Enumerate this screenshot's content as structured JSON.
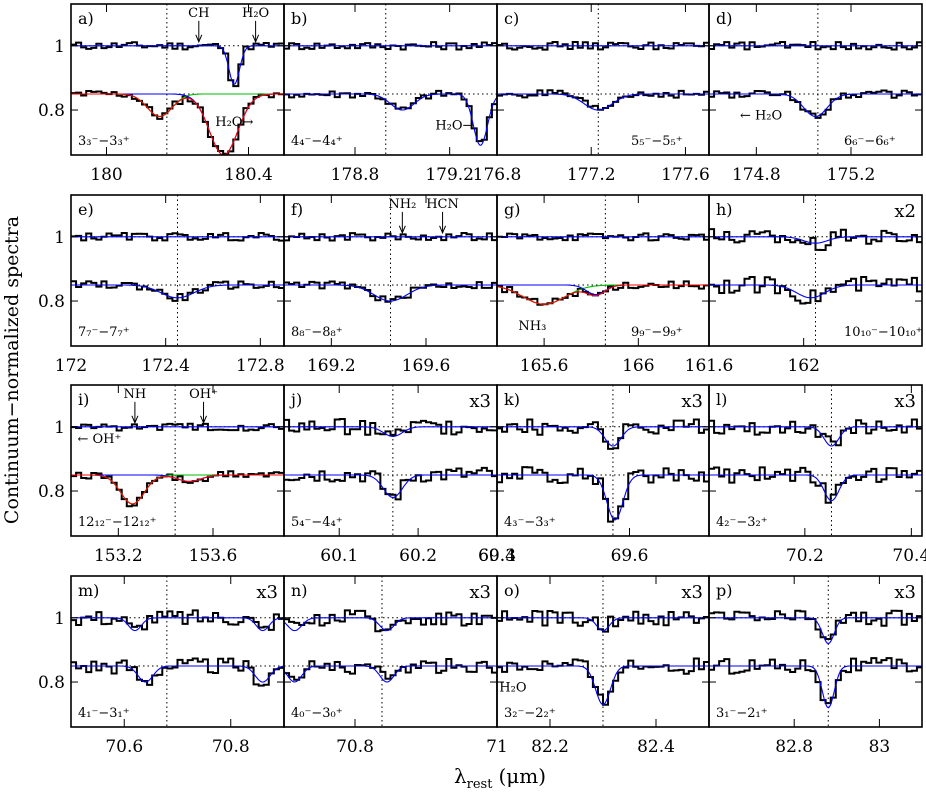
{
  "figure": {
    "ylabel": "Continuum−normalized spectra",
    "xlabel_main": "λ",
    "xlabel_sub": "rest",
    "xlabel_unit": "(μm)",
    "y_ticks": [
      {
        "v": 1,
        "label": "1"
      },
      {
        "v": 0.8,
        "label": "0.8"
      }
    ],
    "colors": {
      "spectrum": "#000000",
      "fit_total": "#0000ff",
      "fit_comp1": "#ff0000",
      "fit_comp2": "#00bb00"
    }
  },
  "chart_data": [
    {
      "type": "line",
      "id": "a",
      "panel_label": "a)",
      "transition": "3₃⁻−3₃⁺",
      "scale": "",
      "xlim": [
        179.9,
        180.5
      ],
      "x_ticks": [
        {
          "v": 180,
          "label": "180"
        },
        {
          "v": 180.4,
          "label": "180.4"
        }
      ],
      "line_center": 180.17,
      "ylim": [
        0.66,
        1.13
      ],
      "top": {
        "base": 1.0,
        "depths": [
          0.0,
          0.12
        ],
        "centers": [
          180.17,
          180.36
        ],
        "widths": [
          0.05,
          0.015
        ]
      },
      "bottom": {
        "base": 0.85,
        "depths": [
          0.07,
          0.19
        ],
        "centers": [
          180.15,
          180.33
        ],
        "widths": [
          0.035,
          0.04
        ],
        "components": true
      },
      "annotations": [
        {
          "text": "CH",
          "x": 180.26,
          "y": 1.09
        },
        {
          "text": "H₂O",
          "x": 180.42,
          "y": 1.09
        },
        {
          "text": "H₂O→",
          "x": 180.36,
          "y": 0.75
        }
      ]
    },
    {
      "type": "line",
      "id": "b",
      "panel_label": "b)",
      "transition": "4₄⁻−4₄⁺",
      "scale": "",
      "xlim": [
        178.5,
        179.4
      ],
      "x_ticks": [
        {
          "v": 178.8,
          "label": "178.8"
        },
        {
          "v": 179.2,
          "label": "179.2"
        }
      ],
      "line_center": 178.93,
      "ylim": [
        0.66,
        1.13
      ],
      "top": {
        "base": 1.0,
        "depths": [
          0.0
        ],
        "centers": [
          178.93
        ],
        "widths": [
          0.05
        ]
      },
      "bottom": {
        "base": 0.85,
        "depths": [
          0.05,
          0.16
        ],
        "centers": [
          179.0,
          179.33
        ],
        "widths": [
          0.05,
          0.03
        ]
      },
      "annotations": [
        {
          "text": "H₂O→",
          "x": 179.22,
          "y": 0.74
        }
      ]
    },
    {
      "type": "line",
      "id": "c",
      "panel_label": "c)",
      "transition": "5₅⁻−5₅⁺",
      "scale": "",
      "xlim": [
        176.8,
        177.7
      ],
      "x_ticks": [
        {
          "v": 176.8,
          "label": "176.8"
        },
        {
          "v": 177.2,
          "label": "177.2"
        },
        {
          "v": 177.6,
          "label": "177.6"
        }
      ],
      "line_center": 177.23,
      "ylim": [
        0.66,
        1.13
      ],
      "top": {
        "base": 1.0,
        "depths": [
          0.0
        ],
        "centers": [
          177.23
        ],
        "widths": [
          0.05
        ]
      },
      "bottom": {
        "base": 0.85,
        "depths": [
          0.05
        ],
        "centers": [
          177.23
        ],
        "widths": [
          0.06
        ]
      },
      "annotations": []
    },
    {
      "type": "line",
      "id": "d",
      "panel_label": "d)",
      "transition": "6₆⁻−6₆⁺",
      "scale": "",
      "xlim": [
        174.6,
        175.5
      ],
      "x_ticks": [
        {
          "v": 174.8,
          "label": "174.8"
        },
        {
          "v": 175.2,
          "label": "175.2"
        }
      ],
      "line_center": 175.06,
      "ylim": [
        0.66,
        1.13
      ],
      "top": {
        "base": 1.0,
        "depths": [
          0.0
        ],
        "centers": [
          175.06
        ],
        "widths": [
          0.05
        ]
      },
      "bottom": {
        "base": 0.85,
        "depths": [
          0.07
        ],
        "centers": [
          175.05
        ],
        "widths": [
          0.05
        ]
      },
      "annotations": [
        {
          "text": "← H₂O",
          "x": 174.82,
          "y": 0.77
        }
      ]
    },
    {
      "type": "line",
      "id": "e",
      "panel_label": "e)",
      "transition": "7₇⁻−7₇⁺",
      "scale": "",
      "xlim": [
        172.0,
        172.9
      ],
      "x_ticks": [
        {
          "v": 172,
          "label": "172"
        },
        {
          "v": 172.4,
          "label": "172.4"
        },
        {
          "v": 172.8,
          "label": "172.8"
        }
      ],
      "line_center": 172.45,
      "ylim": [
        0.66,
        1.13
      ],
      "top": {
        "base": 1.0,
        "depths": [
          0.0
        ],
        "centers": [
          172.45
        ],
        "widths": [
          0.05
        ]
      },
      "bottom": {
        "base": 0.85,
        "depths": [
          0.04
        ],
        "centers": [
          172.45
        ],
        "widths": [
          0.07
        ]
      },
      "annotations": []
    },
    {
      "type": "line",
      "id": "f",
      "panel_label": "f)",
      "transition": "8₈⁻−8₈⁺",
      "scale": "",
      "xlim": [
        169.0,
        169.9
      ],
      "x_ticks": [
        {
          "v": 169.2,
          "label": "169.2"
        },
        {
          "v": 169.6,
          "label": "169.6"
        }
      ],
      "line_center": 169.45,
      "ylim": [
        0.66,
        1.13
      ],
      "top": {
        "base": 1.0,
        "depths": [
          0.0
        ],
        "centers": [
          169.45
        ],
        "widths": [
          0.05
        ]
      },
      "bottom": {
        "base": 0.85,
        "depths": [
          0.05
        ],
        "centers": [
          169.45
        ],
        "widths": [
          0.07
        ]
      },
      "annotations": [
        {
          "text": "NH₂",
          "x": 169.5,
          "y": 1.09
        },
        {
          "text": "HCN",
          "x": 169.67,
          "y": 1.09
        }
      ]
    },
    {
      "type": "line",
      "id": "g",
      "panel_label": "g)",
      "transition": "9₉⁻−9₉⁺",
      "scale": "",
      "xlim": [
        165.4,
        166.3
      ],
      "x_ticks": [
        {
          "v": 165.6,
          "label": "165.6"
        },
        {
          "v": 166,
          "label": "166"
        }
      ],
      "line_center": 165.86,
      "ylim": [
        0.66,
        1.13
      ],
      "top": {
        "base": 1.0,
        "depths": [
          0.0
        ],
        "centers": [
          165.86
        ],
        "widths": [
          0.05
        ]
      },
      "bottom": {
        "base": 0.85,
        "depths": [
          0.06,
          0.03
        ],
        "centers": [
          165.6,
          165.82
        ],
        "widths": [
          0.09,
          0.04
        ],
        "components": true
      },
      "annotations": [
        {
          "text": "NH₃",
          "x": 165.55,
          "y": 0.71
        }
      ]
    },
    {
      "type": "line",
      "id": "h",
      "panel_label": "h)",
      "transition": "10₁₀⁻−10₁₀⁺",
      "scale": "x2",
      "xlim": [
        161.6,
        162.5
      ],
      "x_ticks": [
        {
          "v": 161.6,
          "label": "161.6"
        },
        {
          "v": 162,
          "label": "162"
        }
      ],
      "line_center": 162.05,
      "ylim": [
        0.66,
        1.13
      ],
      "top": {
        "base": 1.0,
        "depths": [
          0.02
        ],
        "centers": [
          162.05
        ],
        "widths": [
          0.05
        ]
      },
      "bottom": {
        "base": 0.85,
        "depths": [
          0.04
        ],
        "centers": [
          162.03
        ],
        "widths": [
          0.06
        ]
      },
      "annotations": []
    },
    {
      "type": "line",
      "id": "i",
      "panel_label": "i)",
      "transition": "12₁₂⁻−12₁₂⁺",
      "scale": "",
      "xlim": [
        153.0,
        153.9
      ],
      "x_ticks": [
        {
          "v": 153.2,
          "label": "153.2"
        },
        {
          "v": 153.6,
          "label": "153.6"
        }
      ],
      "line_center": 153.44,
      "ylim": [
        0.66,
        1.13
      ],
      "top": {
        "base": 1.0,
        "depths": [
          0.0
        ],
        "centers": [
          153.44
        ],
        "widths": [
          0.05
        ]
      },
      "bottom": {
        "base": 0.85,
        "depths": [
          0.09,
          0.02
        ],
        "centers": [
          153.26,
          153.5
        ],
        "widths": [
          0.05,
          0.05
        ],
        "components": true
      },
      "annotations": [
        {
          "text": "NH",
          "x": 153.27,
          "y": 1.09
        },
        {
          "text": "OH⁺",
          "x": 153.56,
          "y": 1.09
        },
        {
          "text": "← OH⁺",
          "x": 153.12,
          "y": 0.95
        }
      ]
    },
    {
      "type": "line",
      "id": "j",
      "panel_label": "j)",
      "transition": "5₄⁻−4₄⁺",
      "scale": "x3",
      "xlim": [
        60.03,
        60.3
      ],
      "x_ticks": [
        {
          "v": 60.1,
          "label": "60.1"
        },
        {
          "v": 60.2,
          "label": "60.2"
        },
        {
          "v": 60.3,
          "label": "60.3"
        }
      ],
      "line_center": 60.168,
      "ylim": [
        0.66,
        1.13
      ],
      "top": {
        "base": 1.0,
        "depths": [
          0.03
        ],
        "centers": [
          60.168
        ],
        "widths": [
          0.012
        ]
      },
      "bottom": {
        "base": 0.85,
        "depths": [
          0.07
        ],
        "centers": [
          60.168
        ],
        "widths": [
          0.012
        ]
      },
      "annotations": []
    },
    {
      "type": "line",
      "id": "k",
      "panel_label": "k)",
      "transition": "4₃⁻−3₃⁺",
      "scale": "x3",
      "xlim": [
        69.4,
        69.72
      ],
      "x_ticks": [
        {
          "v": 69.4,
          "label": "69.4"
        },
        {
          "v": 69.6,
          "label": "69.6"
        }
      ],
      "line_center": 69.575,
      "ylim": [
        0.66,
        1.13
      ],
      "top": {
        "base": 1.0,
        "depths": [
          0.06
        ],
        "centers": [
          69.575
        ],
        "widths": [
          0.012
        ]
      },
      "bottom": {
        "base": 0.85,
        "depths": [
          0.14
        ],
        "centers": [
          69.578
        ],
        "widths": [
          0.012
        ]
      },
      "annotations": []
    },
    {
      "type": "line",
      "id": "l",
      "panel_label": "l)",
      "transition": "4₂⁻−3₂⁺",
      "scale": "x3",
      "xlim": [
        70.02,
        70.42
      ],
      "x_ticks": [
        {
          "v": 70.2,
          "label": "70.2"
        },
        {
          "v": 70.4,
          "label": "70.4"
        }
      ],
      "line_center": 70.25,
      "ylim": [
        0.66,
        1.13
      ],
      "top": {
        "base": 1.0,
        "depths": [
          0.06
        ],
        "centers": [
          70.25
        ],
        "widths": [
          0.014
        ]
      },
      "bottom": {
        "base": 0.85,
        "depths": [
          0.08
        ],
        "centers": [
          70.25
        ],
        "widths": [
          0.014
        ]
      },
      "annotations": []
    },
    {
      "type": "line",
      "id": "m",
      "panel_label": "m)",
      "transition": "4₁⁻−3₁⁺",
      "scale": "x3",
      "xlim": [
        70.5,
        70.9
      ],
      "x_ticks": [
        {
          "v": 70.6,
          "label": "70.6"
        },
        {
          "v": 70.8,
          "label": "70.8"
        }
      ],
      "line_center": 70.68,
      "ylim": [
        0.66,
        1.13
      ],
      "top": {
        "base": 1.0,
        "depths": [
          0.04,
          0.04
        ],
        "centers": [
          70.62,
          70.86
        ],
        "widths": [
          0.012,
          0.012
        ]
      },
      "bottom": {
        "base": 0.85,
        "depths": [
          0.05,
          0.05
        ],
        "centers": [
          70.64,
          70.86
        ],
        "widths": [
          0.014,
          0.014
        ]
      },
      "annotations": []
    },
    {
      "type": "line",
      "id": "n",
      "panel_label": "n)",
      "transition": "4₀⁻−3₀⁺",
      "scale": "x3",
      "xlim": [
        70.7,
        71.0
      ],
      "x_ticks": [
        {
          "v": 70.8,
          "label": "70.8"
        },
        {
          "v": 71,
          "label": "71"
        }
      ],
      "line_center": 70.838,
      "ylim": [
        0.66,
        1.13
      ],
      "top": {
        "base": 1.0,
        "depths": [
          0.04,
          0.04
        ],
        "centers": [
          70.715,
          70.845
        ],
        "widths": [
          0.01,
          0.01
        ]
      },
      "bottom": {
        "base": 0.85,
        "depths": [
          0.05,
          0.05
        ],
        "centers": [
          70.715,
          70.845
        ],
        "widths": [
          0.01,
          0.01
        ]
      },
      "annotations": []
    },
    {
      "type": "line",
      "id": "o",
      "panel_label": "o)",
      "transition": "3₂⁻−2₂⁺",
      "scale": "x3",
      "xlim": [
        82.1,
        82.5
      ],
      "x_ticks": [
        {
          "v": 82.2,
          "label": "82.2"
        },
        {
          "v": 82.4,
          "label": "82.4"
        }
      ],
      "line_center": 82.3,
      "ylim": [
        0.66,
        1.13
      ],
      "top": {
        "base": 1.0,
        "depths": [
          0.04
        ],
        "centers": [
          82.3
        ],
        "widths": [
          0.012
        ]
      },
      "bottom": {
        "base": 0.85,
        "depths": [
          0.12
        ],
        "centers": [
          82.3
        ],
        "widths": [
          0.014
        ]
      },
      "annotations": [
        {
          "text": "H₂O",
          "x": 82.13,
          "y": 0.77
        }
      ]
    },
    {
      "type": "line",
      "id": "p",
      "panel_label": "p)",
      "transition": "3₁⁻−2₁⁺",
      "scale": "x3",
      "xlim": [
        82.6,
        83.1
      ],
      "x_ticks": [
        {
          "v": 82.8,
          "label": "82.8"
        },
        {
          "v": 83,
          "label": "83"
        }
      ],
      "line_center": 82.88,
      "ylim": [
        0.66,
        1.13
      ],
      "top": {
        "base": 1.0,
        "depths": [
          0.08
        ],
        "centers": [
          82.88
        ],
        "widths": [
          0.014
        ]
      },
      "bottom": {
        "base": 0.85,
        "depths": [
          0.13
        ],
        "centers": [
          82.88
        ],
        "widths": [
          0.014
        ]
      },
      "annotations": []
    }
  ]
}
